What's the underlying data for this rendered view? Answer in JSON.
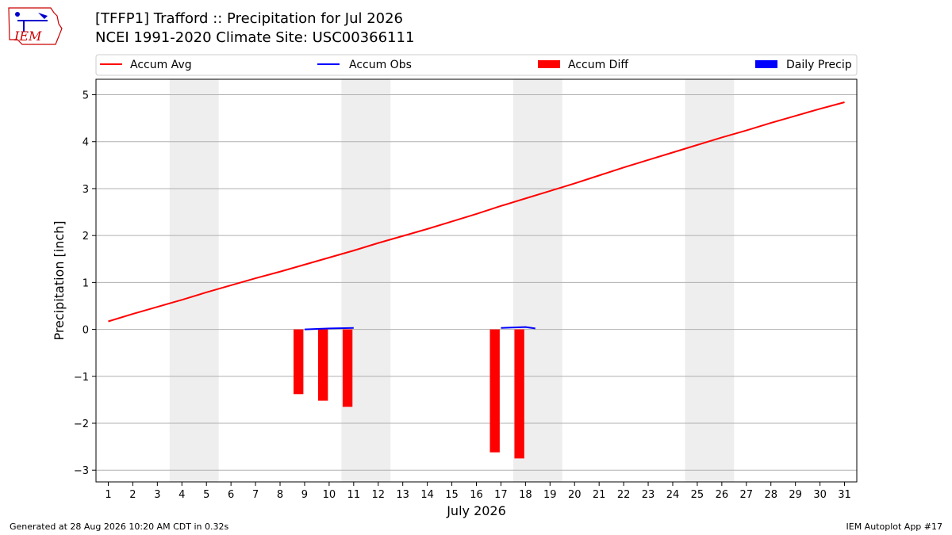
{
  "header": {
    "title_line1": "[TFFP1] Trafford :: Precipitation for Jul 2026",
    "title_line2": "NCEI 1991-2020 Climate Site: USC00366111",
    "logo_text": "IEM"
  },
  "footer": {
    "left": "Generated at 28 Aug 2026 10:20 AM CDT in 0.32s",
    "right": "IEM Autoplot App #17"
  },
  "chart_data": {
    "type": "line",
    "xlabel": "July 2026",
    "ylabel": "Precipitation [inch]",
    "xlim": [
      0.5,
      31.5
    ],
    "ylim": [
      -3.25,
      5.33
    ],
    "x_ticks": [
      1,
      2,
      3,
      4,
      5,
      6,
      7,
      8,
      9,
      10,
      11,
      12,
      13,
      14,
      15,
      16,
      17,
      18,
      19,
      20,
      21,
      22,
      23,
      24,
      25,
      26,
      27,
      28,
      29,
      30,
      31
    ],
    "y_ticks": [
      5,
      4,
      3,
      2,
      1,
      0,
      -1,
      -2,
      -3
    ],
    "y_tick_labels": [
      "5",
      "4",
      "3",
      "2",
      "1",
      "0",
      "−1",
      "−2",
      "−3"
    ],
    "grid": "horizontal",
    "legend_position": "top",
    "weekend_shading": [
      [
        3.5,
        5.5
      ],
      [
        10.5,
        12.5
      ],
      [
        17.5,
        19.5
      ],
      [
        24.5,
        26.5
      ]
    ],
    "legend": [
      {
        "label": "Accum Avg",
        "kind": "line",
        "color": "#ff0000"
      },
      {
        "label": "Accum Obs",
        "kind": "line",
        "color": "#0000ff"
      },
      {
        "label": "Accum Diff",
        "kind": "bar",
        "color": "#ff0000"
      },
      {
        "label": "Daily Precip",
        "kind": "bar",
        "color": "#0000ff"
      }
    ],
    "accum_avg": {
      "x": [
        1,
        2,
        3,
        4,
        5,
        6,
        7,
        8,
        9,
        10,
        11,
        12,
        13,
        14,
        15,
        16,
        17,
        18,
        19,
        20,
        21,
        22,
        23,
        24,
        25,
        26,
        27,
        28,
        29,
        30,
        31
      ],
      "y": [
        0.17,
        0.33,
        0.48,
        0.63,
        0.79,
        0.94,
        1.09,
        1.23,
        1.38,
        1.53,
        1.68,
        1.84,
        1.99,
        2.14,
        2.3,
        2.46,
        2.63,
        2.79,
        2.95,
        3.11,
        3.28,
        3.45,
        3.61,
        3.77,
        3.93,
        4.09,
        4.24,
        4.4,
        4.55,
        4.7,
        4.84
      ]
    },
    "accum_obs": [
      {
        "x": [
          9,
          10,
          11
        ],
        "y": [
          0.0,
          0.02,
          0.03
        ]
      },
      {
        "x": [
          17,
          18,
          18.4
        ],
        "y": [
          0.03,
          0.05,
          0.02
        ]
      }
    ],
    "accum_diff": {
      "x": [
        8.75,
        9.75,
        10.75,
        16.75,
        17.75
      ],
      "y": [
        -1.38,
        -1.52,
        -1.65,
        -2.62,
        -2.75
      ]
    },
    "daily_precip": {
      "x": [],
      "y": []
    }
  }
}
